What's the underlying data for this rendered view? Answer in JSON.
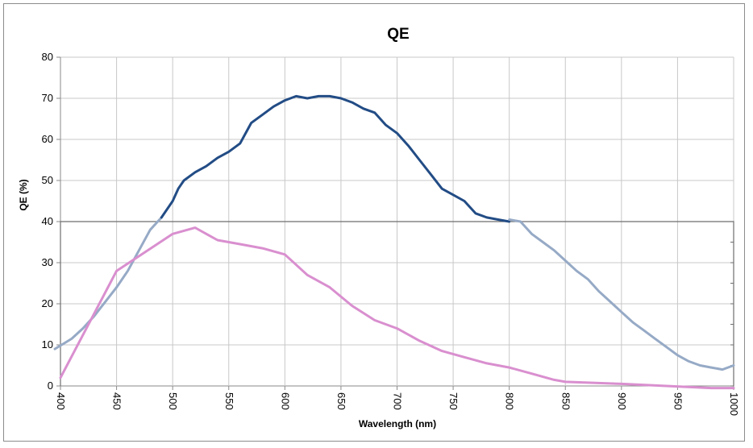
{
  "chart_data": {
    "type": "line",
    "title": "QE",
    "xlabel": "Wavelength (nm)",
    "ylabel": "QE (%)",
    "xlim": [
      400,
      1000
    ],
    "ylim": [
      0,
      80
    ],
    "xticks": [
      "400",
      "450",
      "500",
      "550",
      "600",
      "650",
      "700",
      "750",
      "800",
      "850",
      "900",
      "950",
      "1000"
    ],
    "yticks": [
      "0",
      "10",
      "20",
      "30",
      "40",
      "50",
      "60",
      "70",
      "80"
    ],
    "grid": true,
    "legend": "none",
    "series": [
      {
        "color": "#96aac6",
        "x": [
          395,
          410,
          420,
          430,
          440,
          450,
          460,
          470,
          480,
          490
        ],
        "y": [
          9,
          11.5,
          14,
          17,
          20.5,
          24,
          28,
          33,
          38,
          41
        ]
      },
      {
        "color": "#224c85",
        "x": [
          490,
          500,
          505,
          510,
          520,
          530,
          540,
          550,
          560,
          570,
          580,
          590,
          600,
          610,
          620,
          630,
          640,
          650,
          660,
          670,
          680,
          690,
          700,
          710,
          720,
          730,
          740,
          750,
          760,
          770,
          780,
          790,
          800
        ],
        "y": [
          41,
          45,
          48,
          50,
          52,
          53.5,
          55.5,
          57,
          59,
          64,
          66,
          68,
          69.5,
          70.5,
          70,
          70.5,
          70.5,
          70,
          69,
          67.5,
          66.5,
          63.5,
          61.5,
          58.5,
          55,
          51.5,
          48,
          46.5,
          45,
          42,
          41,
          40.5,
          40
        ]
      },
      {
        "color": "#96aac6",
        "x": [
          800,
          810,
          820,
          830,
          840,
          850,
          860,
          870,
          880,
          890,
          900,
          910,
          920,
          930,
          940,
          950,
          960,
          970,
          980,
          990,
          1000
        ],
        "y": [
          40.5,
          40,
          37,
          35,
          33,
          30.5,
          28,
          26,
          23,
          20.5,
          18,
          15.5,
          13.5,
          11.5,
          9.5,
          7.5,
          6,
          5,
          4.5,
          4,
          5
        ]
      },
      {
        "color": "#d98fcf",
        "x": [
          400,
          450,
          500,
          520,
          540,
          560,
          580,
          600,
          620,
          640,
          660,
          680,
          700,
          720,
          740,
          760,
          780,
          800,
          820,
          840,
          850,
          870,
          900,
          940,
          980,
          1000
        ],
        "y": [
          2,
          28,
          37,
          38.5,
          35.5,
          34.5,
          33.5,
          32,
          27,
          24,
          19.5,
          16,
          14,
          11,
          8.5,
          7,
          5.5,
          4.5,
          3,
          1.5,
          1,
          0.8,
          0.5,
          0,
          -0.5,
          -0.5
        ]
      }
    ]
  }
}
